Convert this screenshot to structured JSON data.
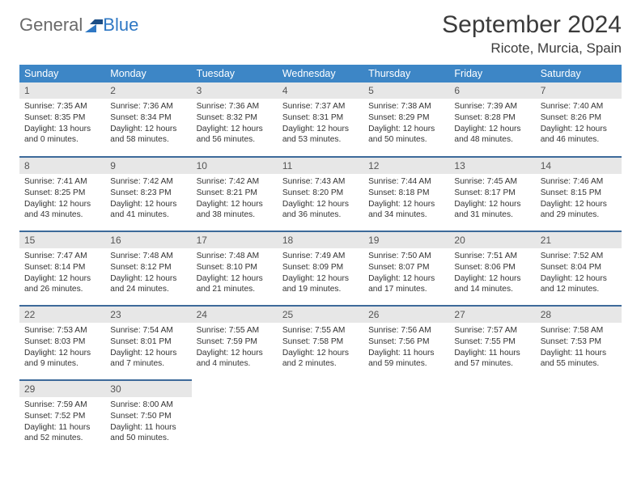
{
  "brand": {
    "part1": "General",
    "part2": "Blue"
  },
  "title": "September 2024",
  "location": "Ricote, Murcia, Spain",
  "theme": {
    "header_bg": "#3d86c6",
    "header_fg": "#ffffff",
    "row_border": "#3d6a9a",
    "daynum_bg": "#e7e7e7",
    "text": "#333333",
    "page_bg": "#ffffff",
    "logo_gray": "#6a6a6a",
    "logo_blue": "#2f78c4"
  },
  "weekdays": [
    "Sunday",
    "Monday",
    "Tuesday",
    "Wednesday",
    "Thursday",
    "Friday",
    "Saturday"
  ],
  "weeks": [
    [
      {
        "n": "1",
        "sr": "Sunrise: 7:35 AM",
        "ss": "Sunset: 8:35 PM",
        "dl1": "Daylight: 13 hours",
        "dl2": "and 0 minutes."
      },
      {
        "n": "2",
        "sr": "Sunrise: 7:36 AM",
        "ss": "Sunset: 8:34 PM",
        "dl1": "Daylight: 12 hours",
        "dl2": "and 58 minutes."
      },
      {
        "n": "3",
        "sr": "Sunrise: 7:36 AM",
        "ss": "Sunset: 8:32 PM",
        "dl1": "Daylight: 12 hours",
        "dl2": "and 56 minutes."
      },
      {
        "n": "4",
        "sr": "Sunrise: 7:37 AM",
        "ss": "Sunset: 8:31 PM",
        "dl1": "Daylight: 12 hours",
        "dl2": "and 53 minutes."
      },
      {
        "n": "5",
        "sr": "Sunrise: 7:38 AM",
        "ss": "Sunset: 8:29 PM",
        "dl1": "Daylight: 12 hours",
        "dl2": "and 50 minutes."
      },
      {
        "n": "6",
        "sr": "Sunrise: 7:39 AM",
        "ss": "Sunset: 8:28 PM",
        "dl1": "Daylight: 12 hours",
        "dl2": "and 48 minutes."
      },
      {
        "n": "7",
        "sr": "Sunrise: 7:40 AM",
        "ss": "Sunset: 8:26 PM",
        "dl1": "Daylight: 12 hours",
        "dl2": "and 46 minutes."
      }
    ],
    [
      {
        "n": "8",
        "sr": "Sunrise: 7:41 AM",
        "ss": "Sunset: 8:25 PM",
        "dl1": "Daylight: 12 hours",
        "dl2": "and 43 minutes."
      },
      {
        "n": "9",
        "sr": "Sunrise: 7:42 AM",
        "ss": "Sunset: 8:23 PM",
        "dl1": "Daylight: 12 hours",
        "dl2": "and 41 minutes."
      },
      {
        "n": "10",
        "sr": "Sunrise: 7:42 AM",
        "ss": "Sunset: 8:21 PM",
        "dl1": "Daylight: 12 hours",
        "dl2": "and 38 minutes."
      },
      {
        "n": "11",
        "sr": "Sunrise: 7:43 AM",
        "ss": "Sunset: 8:20 PM",
        "dl1": "Daylight: 12 hours",
        "dl2": "and 36 minutes."
      },
      {
        "n": "12",
        "sr": "Sunrise: 7:44 AM",
        "ss": "Sunset: 8:18 PM",
        "dl1": "Daylight: 12 hours",
        "dl2": "and 34 minutes."
      },
      {
        "n": "13",
        "sr": "Sunrise: 7:45 AM",
        "ss": "Sunset: 8:17 PM",
        "dl1": "Daylight: 12 hours",
        "dl2": "and 31 minutes."
      },
      {
        "n": "14",
        "sr": "Sunrise: 7:46 AM",
        "ss": "Sunset: 8:15 PM",
        "dl1": "Daylight: 12 hours",
        "dl2": "and 29 minutes."
      }
    ],
    [
      {
        "n": "15",
        "sr": "Sunrise: 7:47 AM",
        "ss": "Sunset: 8:14 PM",
        "dl1": "Daylight: 12 hours",
        "dl2": "and 26 minutes."
      },
      {
        "n": "16",
        "sr": "Sunrise: 7:48 AM",
        "ss": "Sunset: 8:12 PM",
        "dl1": "Daylight: 12 hours",
        "dl2": "and 24 minutes."
      },
      {
        "n": "17",
        "sr": "Sunrise: 7:48 AM",
        "ss": "Sunset: 8:10 PM",
        "dl1": "Daylight: 12 hours",
        "dl2": "and 21 minutes."
      },
      {
        "n": "18",
        "sr": "Sunrise: 7:49 AM",
        "ss": "Sunset: 8:09 PM",
        "dl1": "Daylight: 12 hours",
        "dl2": "and 19 minutes."
      },
      {
        "n": "19",
        "sr": "Sunrise: 7:50 AM",
        "ss": "Sunset: 8:07 PM",
        "dl1": "Daylight: 12 hours",
        "dl2": "and 17 minutes."
      },
      {
        "n": "20",
        "sr": "Sunrise: 7:51 AM",
        "ss": "Sunset: 8:06 PM",
        "dl1": "Daylight: 12 hours",
        "dl2": "and 14 minutes."
      },
      {
        "n": "21",
        "sr": "Sunrise: 7:52 AM",
        "ss": "Sunset: 8:04 PM",
        "dl1": "Daylight: 12 hours",
        "dl2": "and 12 minutes."
      }
    ],
    [
      {
        "n": "22",
        "sr": "Sunrise: 7:53 AM",
        "ss": "Sunset: 8:03 PM",
        "dl1": "Daylight: 12 hours",
        "dl2": "and 9 minutes."
      },
      {
        "n": "23",
        "sr": "Sunrise: 7:54 AM",
        "ss": "Sunset: 8:01 PM",
        "dl1": "Daylight: 12 hours",
        "dl2": "and 7 minutes."
      },
      {
        "n": "24",
        "sr": "Sunrise: 7:55 AM",
        "ss": "Sunset: 7:59 PM",
        "dl1": "Daylight: 12 hours",
        "dl2": "and 4 minutes."
      },
      {
        "n": "25",
        "sr": "Sunrise: 7:55 AM",
        "ss": "Sunset: 7:58 PM",
        "dl1": "Daylight: 12 hours",
        "dl2": "and 2 minutes."
      },
      {
        "n": "26",
        "sr": "Sunrise: 7:56 AM",
        "ss": "Sunset: 7:56 PM",
        "dl1": "Daylight: 11 hours",
        "dl2": "and 59 minutes."
      },
      {
        "n": "27",
        "sr": "Sunrise: 7:57 AM",
        "ss": "Sunset: 7:55 PM",
        "dl1": "Daylight: 11 hours",
        "dl2": "and 57 minutes."
      },
      {
        "n": "28",
        "sr": "Sunrise: 7:58 AM",
        "ss": "Sunset: 7:53 PM",
        "dl1": "Daylight: 11 hours",
        "dl2": "and 55 minutes."
      }
    ],
    [
      {
        "n": "29",
        "sr": "Sunrise: 7:59 AM",
        "ss": "Sunset: 7:52 PM",
        "dl1": "Daylight: 11 hours",
        "dl2": "and 52 minutes."
      },
      {
        "n": "30",
        "sr": "Sunrise: 8:00 AM",
        "ss": "Sunset: 7:50 PM",
        "dl1": "Daylight: 11 hours",
        "dl2": "and 50 minutes."
      },
      null,
      null,
      null,
      null,
      null
    ]
  ]
}
